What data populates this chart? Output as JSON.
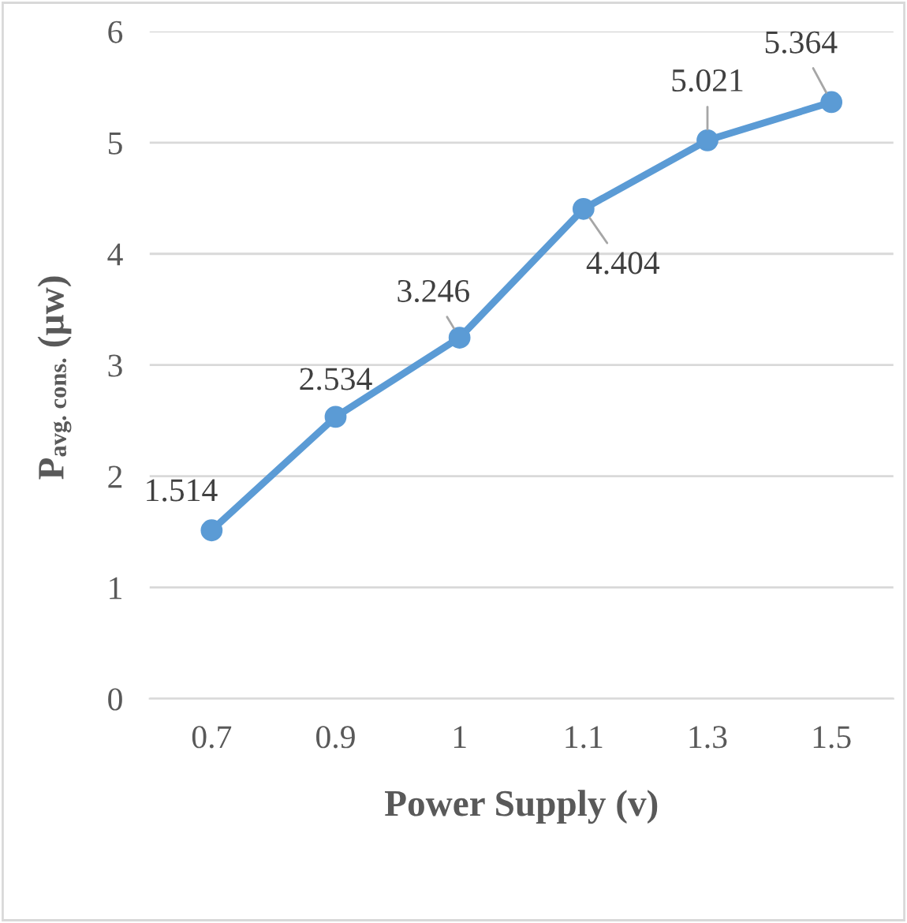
{
  "chart_data": {
    "type": "line",
    "xlabel": "Power Supply (v)",
    "ylabel": "P$_{avg. cons.}$ (µw)",
    "categories": [
      "0.7",
      "0.9",
      "1",
      "1.1",
      "1.3",
      "1.5"
    ],
    "series": [
      {
        "color": "#5b9bd5",
        "values": [
          1.514,
          2.534,
          3.246,
          4.404,
          5.021,
          5.364
        ]
      }
    ],
    "ylim": [
      0,
      6
    ],
    "yticks": [
      0,
      1,
      2,
      3,
      4,
      5,
      6
    ],
    "grid": "y",
    "marker": "circle",
    "line_style": "solid",
    "data_labels": true,
    "legend": false
  }
}
